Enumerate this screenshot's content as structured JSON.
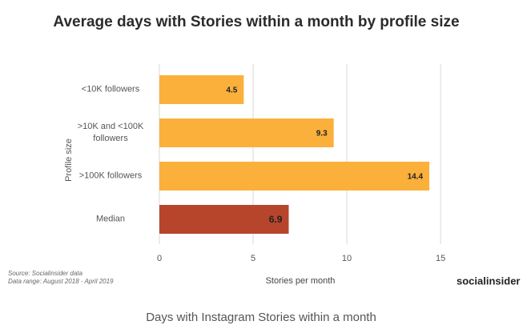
{
  "chart_data": {
    "type": "barh",
    "title": "Average days with Stories within a month by profile size",
    "categories": [
      "<10K followers",
      ">10K and <100K followers",
      ">100K followers",
      "Median"
    ],
    "values": [
      4.5,
      9.3,
      14.4,
      6.9
    ],
    "colors": [
      "#fbb03b",
      "#fbb03b",
      "#fbb03b",
      "#b6452c"
    ],
    "xlim": [
      0,
      18.5
    ],
    "xticks": [
      0,
      5,
      10,
      15
    ],
    "grid": true,
    "xlabel": "Stories per month",
    "ylabel": "Profile size",
    "source": "Source: Socialinsider data",
    "date_range": "Data range: August 2018 - April 2019",
    "logo": "socialinsider",
    "caption": "Days with Instagram Stories within a month"
  }
}
